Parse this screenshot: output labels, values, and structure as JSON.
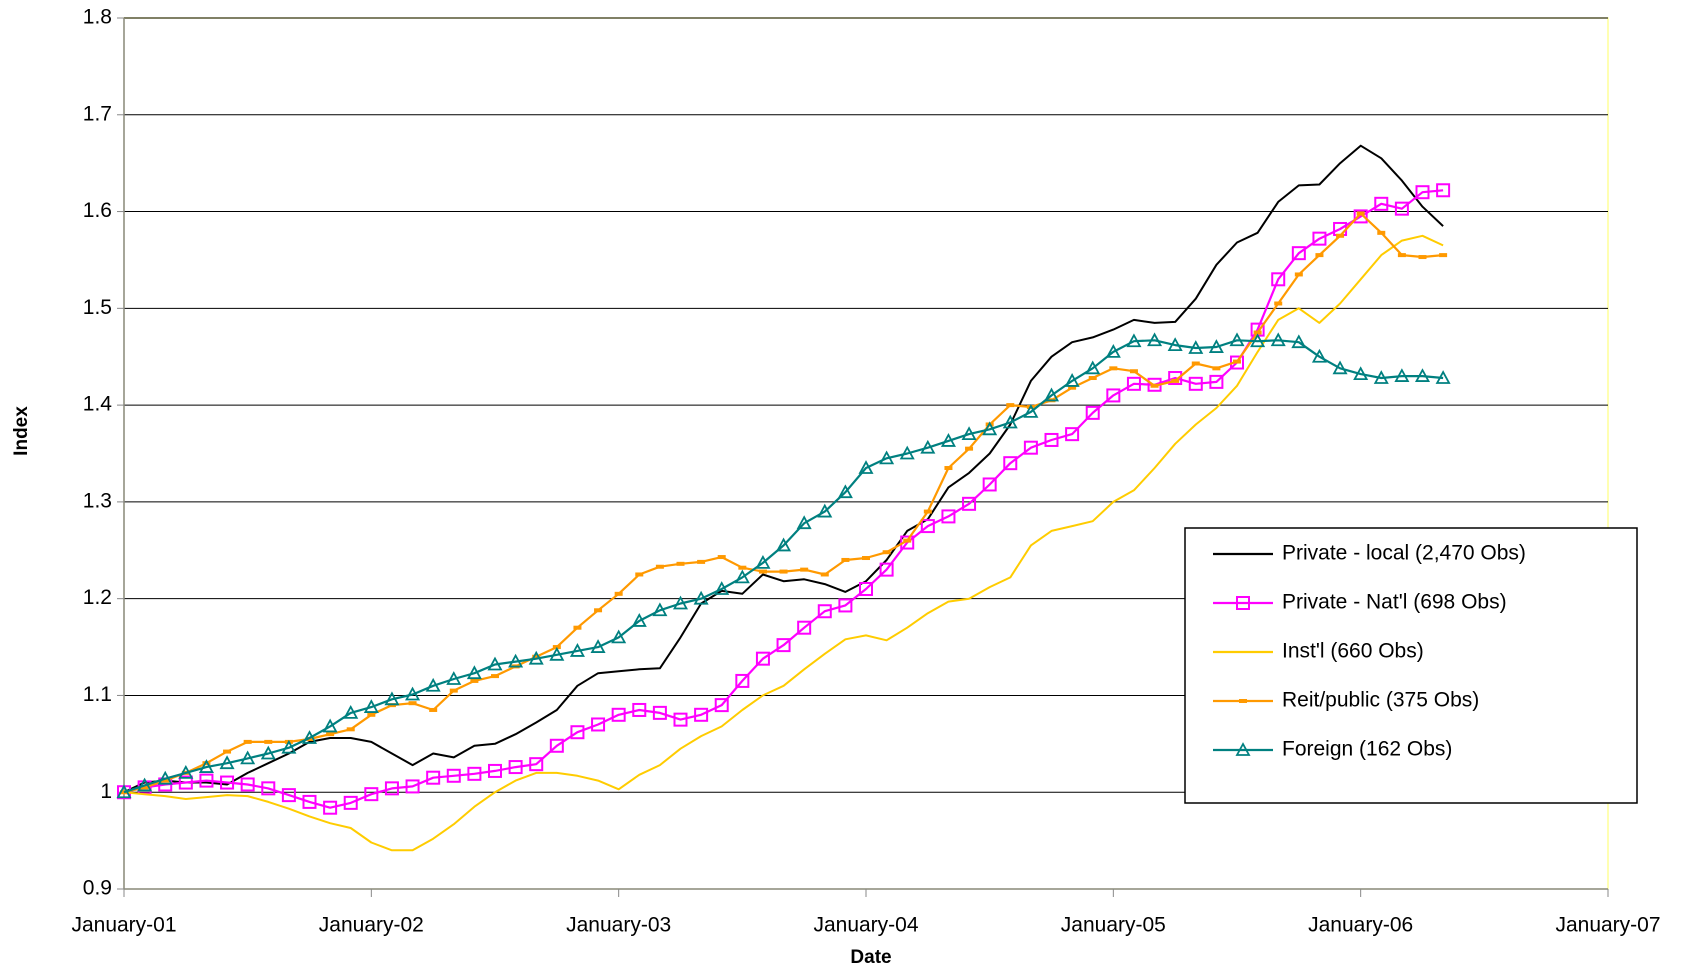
{
  "chart_data": {
    "type": "line",
    "x_label": "Date",
    "y_label": "Index",
    "xlim": [
      0,
      72
    ],
    "xticks": [
      {
        "value": 0,
        "label": "January-01"
      },
      {
        "value": 12,
        "label": "January-02"
      },
      {
        "value": 24,
        "label": "January-03"
      },
      {
        "value": 36,
        "label": "January-04"
      },
      {
        "value": 48,
        "label": "January-05"
      },
      {
        "value": 60,
        "label": "January-06"
      },
      {
        "value": 72,
        "label": "January-07"
      }
    ],
    "ylim": [
      0.9,
      1.8
    ],
    "yticks": [
      0.9,
      1,
      1.1,
      1.2,
      1.3,
      1.4,
      1.5,
      1.6,
      1.7,
      1.8
    ],
    "grid": true,
    "legend": "right",
    "x": [
      0,
      1,
      2,
      3,
      4,
      5,
      6,
      7,
      8,
      9,
      10,
      11,
      12,
      13,
      14,
      15,
      16,
      17,
      18,
      19,
      20,
      21,
      22,
      23,
      24,
      25,
      26,
      27,
      28,
      29,
      30,
      31,
      32,
      33,
      34,
      35,
      36,
      37,
      38,
      39,
      40,
      41,
      42,
      43,
      44,
      45,
      46,
      47,
      48,
      49,
      50,
      51,
      52,
      53,
      54,
      55,
      56,
      57,
      58,
      59,
      60,
      61,
      62,
      63,
      64
    ],
    "series": [
      {
        "name": "Private - local (2,470 Obs)",
        "color": "#000000",
        "marker": "none",
        "values": [
          1.0,
          1.01,
          1.012,
          1.01,
          1.01,
          1.008,
          1.02,
          1.03,
          1.04,
          1.052,
          1.056,
          1.056,
          1.052,
          1.04,
          1.028,
          1.04,
          1.036,
          1.048,
          1.05,
          1.06,
          1.072,
          1.085,
          1.11,
          1.123,
          1.125,
          1.127,
          1.128,
          1.16,
          1.195,
          1.208,
          1.205,
          1.225,
          1.218,
          1.22,
          1.215,
          1.207,
          1.218,
          1.24,
          1.27,
          1.282,
          1.315,
          1.33,
          1.35,
          1.38,
          1.425,
          1.45,
          1.465,
          1.47,
          1.478,
          1.488,
          1.485,
          1.486,
          1.51,
          1.545,
          1.568,
          1.578,
          1.61,
          1.627,
          1.628,
          1.65,
          1.668,
          1.655,
          1.632,
          1.605,
          1.585
        ]
      },
      {
        "name": "Private - Nat'l (698 Obs)",
        "color": "#ff00ff",
        "marker": "square",
        "values": [
          1.0,
          1.005,
          1.008,
          1.01,
          1.012,
          1.01,
          1.008,
          1.004,
          0.997,
          0.99,
          0.984,
          0.989,
          0.998,
          1.004,
          1.006,
          1.015,
          1.017,
          1.019,
          1.022,
          1.026,
          1.029,
          1.048,
          1.062,
          1.07,
          1.08,
          1.085,
          1.082,
          1.075,
          1.08,
          1.09,
          1.115,
          1.138,
          1.152,
          1.17,
          1.187,
          1.193,
          1.21,
          1.23,
          1.258,
          1.275,
          1.285,
          1.298,
          1.318,
          1.34,
          1.356,
          1.364,
          1.37,
          1.392,
          1.41,
          1.422,
          1.421,
          1.428,
          1.422,
          1.424,
          1.444,
          1.478,
          1.53,
          1.557,
          1.572,
          1.582,
          1.595,
          1.608,
          1.603,
          1.62,
          1.622
        ]
      },
      {
        "name": "Inst'l (660 Obs)",
        "color": "#ffcc00",
        "marker": "none",
        "values": [
          1.0,
          0.998,
          0.996,
          0.993,
          0.995,
          0.997,
          0.996,
          0.99,
          0.983,
          0.975,
          0.968,
          0.963,
          0.948,
          0.94,
          0.94,
          0.952,
          0.967,
          0.985,
          1.0,
          1.012,
          1.02,
          1.02,
          1.017,
          1.012,
          1.003,
          1.018,
          1.028,
          1.045,
          1.058,
          1.068,
          1.085,
          1.1,
          1.11,
          1.127,
          1.143,
          1.158,
          1.162,
          1.157,
          1.17,
          1.185,
          1.197,
          1.2,
          1.212,
          1.222,
          1.255,
          1.27,
          1.275,
          1.28,
          1.3,
          1.312,
          1.335,
          1.36,
          1.38,
          1.397,
          1.42,
          1.455,
          1.488,
          1.5,
          1.485,
          1.505,
          1.53,
          1.555,
          1.57,
          1.575,
          1.565
        ]
      },
      {
        "name": "Reit/public (375 Obs)",
        "color": "#ff9900",
        "marker": "dash",
        "values": [
          1.0,
          1.005,
          1.012,
          1.02,
          1.03,
          1.042,
          1.052,
          1.052,
          1.052,
          1.055,
          1.06,
          1.065,
          1.08,
          1.09,
          1.092,
          1.085,
          1.105,
          1.115,
          1.12,
          1.13,
          1.14,
          1.15,
          1.17,
          1.188,
          1.205,
          1.225,
          1.233,
          1.236,
          1.238,
          1.243,
          1.232,
          1.228,
          1.228,
          1.23,
          1.225,
          1.24,
          1.242,
          1.248,
          1.26,
          1.29,
          1.335,
          1.355,
          1.38,
          1.4,
          1.398,
          1.405,
          1.418,
          1.428,
          1.438,
          1.435,
          1.42,
          1.425,
          1.443,
          1.438,
          1.445,
          1.475,
          1.505,
          1.535,
          1.555,
          1.575,
          1.598,
          1.578,
          1.555,
          1.553,
          1.555
        ]
      },
      {
        "name": "Foreign (162 Obs)",
        "color": "#008080",
        "marker": "triangle",
        "values": [
          1.0,
          1.007,
          1.014,
          1.02,
          1.026,
          1.03,
          1.035,
          1.04,
          1.046,
          1.056,
          1.068,
          1.082,
          1.088,
          1.096,
          1.101,
          1.11,
          1.117,
          1.123,
          1.132,
          1.135,
          1.138,
          1.142,
          1.146,
          1.15,
          1.16,
          1.177,
          1.188,
          1.195,
          1.2,
          1.21,
          1.222,
          1.237,
          1.255,
          1.278,
          1.29,
          1.31,
          1.335,
          1.345,
          1.35,
          1.356,
          1.363,
          1.37,
          1.375,
          1.382,
          1.393,
          1.41,
          1.425,
          1.438,
          1.455,
          1.466,
          1.467,
          1.462,
          1.459,
          1.46,
          1.467,
          1.466,
          1.467,
          1.465,
          1.45,
          1.438,
          1.432,
          1.428,
          1.43,
          1.43,
          1.428
        ]
      }
    ]
  }
}
